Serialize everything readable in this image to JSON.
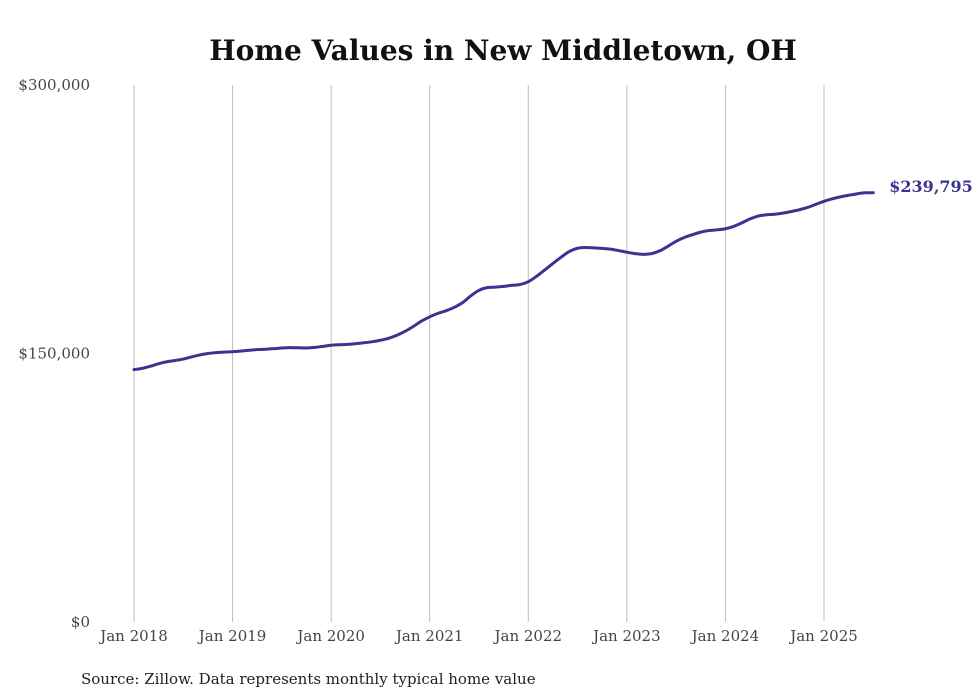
{
  "chart_data": {
    "type": "line",
    "title": "Home Values in New Middletown, OH",
    "xlabel": "",
    "ylabel": "",
    "ylim": [
      0,
      300000
    ],
    "y_ticks": [
      {
        "value": 0,
        "label": "$0"
      },
      {
        "value": 150000,
        "label": "$150,000"
      },
      {
        "value": 300000,
        "label": "$300,000"
      }
    ],
    "x_ticks": [
      {
        "value": 2018,
        "label": "Jan 2018"
      },
      {
        "value": 2019,
        "label": "Jan 2019"
      },
      {
        "value": 2020,
        "label": "Jan 2020"
      },
      {
        "value": 2021,
        "label": "Jan 2021"
      },
      {
        "value": 2022,
        "label": "Jan 2022"
      },
      {
        "value": 2023,
        "label": "Jan 2023"
      },
      {
        "value": 2024,
        "label": "Jan 2024"
      },
      {
        "value": 2025,
        "label": "Jan 2025"
      }
    ],
    "xlim": [
      2018,
      2025.5
    ],
    "grid": "vertical",
    "series_color": "#3a3391",
    "series": [
      {
        "x": [
          2018.0,
          2018.083,
          2018.167,
          2018.25,
          2018.333,
          2018.417,
          2018.5,
          2018.583,
          2018.667,
          2018.75,
          2018.833,
          2018.917,
          2019.0,
          2019.083,
          2019.167,
          2019.25,
          2019.333,
          2019.417,
          2019.5,
          2019.583,
          2019.667,
          2019.75,
          2019.833,
          2019.917,
          2020.0,
          2020.083,
          2020.167,
          2020.25,
          2020.333,
          2020.417,
          2020.5,
          2020.583,
          2020.667,
          2020.75,
          2020.833,
          2020.917,
          2021.0,
          2021.083,
          2021.167,
          2021.25,
          2021.333,
          2021.417,
          2021.5,
          2021.583,
          2021.667,
          2021.75,
          2021.833,
          2021.917,
          2022.0,
          2022.083,
          2022.167,
          2022.25,
          2022.333,
          2022.417,
          2022.5,
          2022.583,
          2022.667,
          2022.75,
          2022.833,
          2022.917,
          2023.0,
          2023.083,
          2023.167,
          2023.25,
          2023.333,
          2023.417,
          2023.5,
          2023.583,
          2023.667,
          2023.75,
          2023.833,
          2023.917,
          2024.0,
          2024.083,
          2024.167,
          2024.25,
          2024.333,
          2024.417,
          2024.5,
          2024.583,
          2024.667,
          2024.75,
          2024.833,
          2024.917,
          2025.0,
          2025.083,
          2025.167,
          2025.25,
          2025.333,
          2025.417,
          2025.5
        ],
        "values": [
          141000,
          141700,
          142900,
          144300,
          145400,
          146100,
          146900,
          148100,
          149200,
          150000,
          150500,
          150800,
          151000,
          151300,
          151800,
          152200,
          152400,
          152700,
          153100,
          153300,
          153200,
          153100,
          153400,
          154000,
          154600,
          154900,
          155100,
          155500,
          156000,
          156600,
          157400,
          158500,
          160200,
          162400,
          165100,
          168100,
          170500,
          172400,
          173900,
          175800,
          178400,
          182200,
          185300,
          186800,
          187100,
          187500,
          188100,
          188500,
          190100,
          193100,
          196700,
          200300,
          203800,
          207000,
          208800,
          209200,
          209000,
          208700,
          208300,
          207500,
          206600,
          205800,
          205400,
          205800,
          207300,
          209900,
          212700,
          214800,
          216400,
          217800,
          218700,
          219100,
          219700,
          221000,
          223000,
          225200,
          226800,
          227500,
          227800,
          228400,
          229300,
          230300,
          231600,
          233300,
          235000,
          236400,
          237500,
          238400,
          239200,
          239795,
          239795
        ]
      }
    ],
    "end_label": "$239,795"
  },
  "source": "Source: Zillow. Data represents monthly typical home value"
}
